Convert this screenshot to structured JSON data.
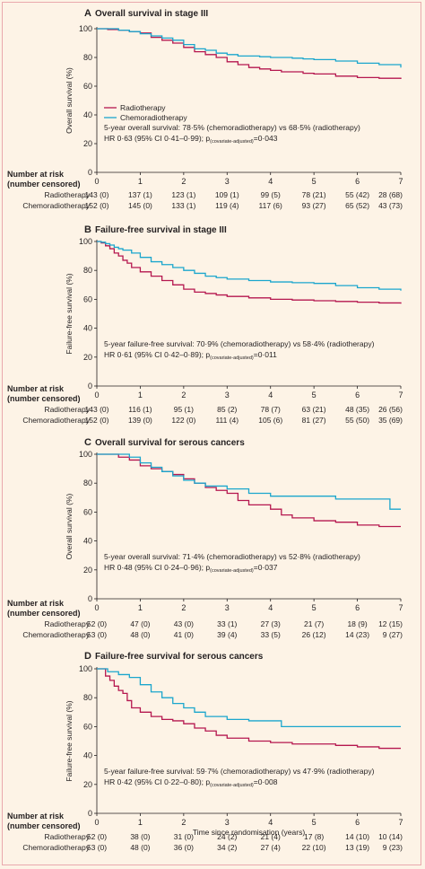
{
  "colors": {
    "radiotherapy": "#b5174f",
    "chemoradiotherapy": "#1ba6cd"
  },
  "legend": {
    "rt_label": "Radiotherapy",
    "crt_label": "Chemoradiotherapy"
  },
  "risk_header": {
    "line1": "Number at risk",
    "line2": "(number censored)"
  },
  "x_axis_label": "Time since randomisation (years)",
  "chart_data": [
    {
      "type": "line",
      "step": true,
      "letter": "A",
      "title": "Overall survival in stage III",
      "ylabel": "Overall survival (%)",
      "xlim": [
        0,
        7
      ],
      "ylim": [
        0,
        100
      ],
      "x_ticks": [
        0,
        1,
        2,
        3,
        4,
        5,
        6,
        7
      ],
      "y_ticks": [
        0,
        20,
        40,
        60,
        80,
        100
      ],
      "legend_shown": true,
      "annotation": [
        "5-year overall survival: 78·5% (chemoradiotherapy) vs 68·5% (radiotherapy)",
        "HR 0·63 (95% CI 0·41–0·99); p",
        "(covariate-adjusted)",
        "=0·043"
      ],
      "series": [
        {
          "name": "Radiotherapy",
          "x": [
            0,
            0.25,
            0.5,
            0.75,
            1,
            1.25,
            1.5,
            1.75,
            2,
            2.25,
            2.5,
            2.75,
            3,
            3.25,
            3.5,
            3.75,
            4,
            4.25,
            4.5,
            4.75,
            5,
            5.5,
            6,
            6.5,
            7
          ],
          "y": [
            100,
            99.5,
            99,
            98,
            97,
            94,
            92,
            90,
            87,
            84,
            82,
            80,
            77,
            75,
            73,
            72,
            71,
            70,
            70,
            69,
            68.5,
            67,
            66,
            65.5,
            65
          ]
        },
        {
          "name": "Chemoradiotherapy",
          "x": [
            0,
            0.25,
            0.5,
            0.75,
            1,
            1.25,
            1.5,
            1.75,
            2,
            2.25,
            2.5,
            2.75,
            3,
            3.25,
            3.5,
            3.75,
            4,
            4.25,
            4.5,
            4.75,
            5,
            5.5,
            6,
            6.5,
            7
          ],
          "y": [
            100,
            100,
            99,
            98,
            96.5,
            95,
            93.5,
            92,
            89,
            86,
            85,
            83,
            82,
            81,
            81,
            80.5,
            80,
            80,
            79.5,
            79,
            78.5,
            77.5,
            76,
            75,
            73
          ]
        }
      ],
      "risk": {
        "rt": [
          "143 (0)",
          "137 (1)",
          "123 (1)",
          "109 (1)",
          "99 (5)",
          "78 (21)",
          "55 (42)",
          "28 (68)"
        ],
        "crt": [
          "152 (0)",
          "145 (0)",
          "133 (1)",
          "119 (4)",
          "117 (6)",
          "93 (27)",
          "65 (52)",
          "43 (73)"
        ]
      }
    },
    {
      "type": "line",
      "step": true,
      "letter": "B",
      "title": "Failure-free survival in stage III",
      "ylabel": "Failure-free survival (%)",
      "xlim": [
        0,
        7
      ],
      "ylim": [
        0,
        100
      ],
      "x_ticks": [
        0,
        1,
        2,
        3,
        4,
        5,
        6,
        7
      ],
      "y_ticks": [
        0,
        20,
        40,
        60,
        80,
        100
      ],
      "legend_shown": false,
      "annotation": [
        "5-year failure-free survival: 70·9% (chemoradiotherapy) vs 58·4% (radiotherapy)",
        "HR 0·61 (95% CI 0·42–0·89); p",
        "(covariate-adjusted)",
        "=0·011"
      ],
      "series": [
        {
          "name": "Radiotherapy",
          "x": [
            0,
            0.1,
            0.2,
            0.3,
            0.4,
            0.5,
            0.6,
            0.7,
            0.8,
            1,
            1.25,
            1.5,
            1.75,
            2,
            2.25,
            2.5,
            2.75,
            3,
            3.5,
            4,
            4.5,
            5,
            5.5,
            6,
            6.5,
            7
          ],
          "y": [
            100,
            99,
            97,
            95,
            92,
            90,
            87,
            85,
            82,
            79,
            76,
            73,
            70,
            67,
            65,
            64,
            63,
            62,
            61,
            60,
            59.5,
            59,
            58.5,
            58,
            57.5,
            57
          ]
        },
        {
          "name": "Chemoradiotherapy",
          "x": [
            0,
            0.1,
            0.2,
            0.3,
            0.4,
            0.5,
            0.6,
            0.8,
            1,
            1.25,
            1.5,
            1.75,
            2,
            2.25,
            2.5,
            2.75,
            3,
            3.5,
            4,
            4.5,
            5,
            5.5,
            6,
            6.5,
            7
          ],
          "y": [
            100,
            99.5,
            98.5,
            97.5,
            96,
            95,
            94,
            92,
            89,
            86,
            84,
            82,
            80,
            78,
            76,
            75,
            74,
            73,
            72,
            71.5,
            71,
            69.5,
            68,
            67,
            66
          ]
        }
      ],
      "risk": {
        "rt": [
          "143 (0)",
          "116 (1)",
          "95 (1)",
          "85 (2)",
          "78 (7)",
          "63 (21)",
          "48 (35)",
          "26 (56)"
        ],
        "crt": [
          "152 (0)",
          "139 (0)",
          "122 (0)",
          "111 (4)",
          "105 (6)",
          "81 (27)",
          "55 (50)",
          "35 (69)"
        ]
      }
    },
    {
      "type": "line",
      "step": true,
      "letter": "C",
      "title": "Overall survival for serous cancers",
      "ylabel": "Overall survival (%)",
      "xlim": [
        0,
        7
      ],
      "ylim": [
        0,
        100
      ],
      "x_ticks": [
        0,
        1,
        2,
        3,
        4,
        5,
        6,
        7
      ],
      "y_ticks": [
        0,
        20,
        40,
        60,
        80,
        100
      ],
      "legend_shown": false,
      "annotation": [
        "5-year overall survival: 71·4% (chemoradiotherapy) vs 52·8% (radiotherapy)",
        "HR 0·48 (95% CI 0·24–0·96); p",
        "(covariate-adjusted)",
        "=0·037"
      ],
      "series": [
        {
          "name": "Radiotherapy",
          "x": [
            0,
            0.5,
            0.75,
            1,
            1.25,
            1.5,
            1.75,
            2,
            2.25,
            2.5,
            2.75,
            3,
            3.25,
            3.5,
            4,
            4.25,
            4.5,
            5,
            5.5,
            6,
            6.5,
            7
          ],
          "y": [
            100,
            98,
            96,
            92,
            90,
            88,
            86,
            83,
            80,
            77,
            75,
            73,
            68,
            65,
            62,
            58,
            56,
            54,
            53,
            51,
            50,
            50
          ]
        },
        {
          "name": "Chemoradiotherapy",
          "x": [
            0,
            0.5,
            0.75,
            1,
            1.25,
            1.5,
            1.75,
            2,
            2.25,
            2.5,
            3,
            3.5,
            4,
            4.5,
            5,
            5.5,
            6,
            6.5,
            6.75,
            7
          ],
          "y": [
            100,
            100,
            98,
            94,
            91,
            88,
            85,
            82,
            80,
            78,
            76,
            73,
            71,
            71,
            71,
            69,
            69,
            69,
            62,
            62
          ]
        }
      ],
      "risk": {
        "rt": [
          "52 (0)",
          "47 (0)",
          "43 (0)",
          "33 (1)",
          "27 (3)",
          "21 (7)",
          "18 (9)",
          "12 (15)"
        ],
        "crt": [
          "53 (0)",
          "48 (0)",
          "41 (0)",
          "39 (4)",
          "33 (5)",
          "26 (12)",
          "14 (23)",
          "9 (27)"
        ]
      }
    },
    {
      "type": "line",
      "step": true,
      "letter": "D",
      "title": "Failure-free survival for serous cancers",
      "ylabel": "Failure-free survival (%)",
      "xlim": [
        0,
        7
      ],
      "ylim": [
        0,
        100
      ],
      "x_ticks": [
        0,
        1,
        2,
        3,
        4,
        5,
        6,
        7
      ],
      "y_ticks": [
        0,
        20,
        40,
        60,
        80,
        100
      ],
      "legend_shown": false,
      "annotation": [
        "5-year failure-free survival: 59·7% (chemoradiotherapy) vs 47·9% (radiotherapy)",
        "HR 0·42 (95% CI 0·22–0·80); p",
        "(covariate-adjusted)",
        "=0·008"
      ],
      "series": [
        {
          "name": "Radiotherapy",
          "x": [
            0,
            0.2,
            0.3,
            0.4,
            0.5,
            0.6,
            0.7,
            0.8,
            1,
            1.25,
            1.5,
            1.75,
            2,
            2.25,
            2.5,
            2.75,
            3,
            3.5,
            4,
            4.5,
            5,
            5.5,
            6,
            6.5,
            7
          ],
          "y": [
            100,
            95,
            92,
            88,
            85,
            83,
            78,
            73,
            70,
            67,
            65,
            64,
            62,
            59,
            57,
            54,
            52,
            50,
            49,
            48,
            48,
            47,
            46,
            45,
            45
          ]
        },
        {
          "name": "Chemoradiotherapy",
          "x": [
            0,
            0.25,
            0.5,
            0.75,
            1,
            1.25,
            1.5,
            1.75,
            2,
            2.25,
            2.5,
            3,
            3.5,
            4,
            4.25,
            4.5,
            5,
            5.5,
            6,
            6.5,
            7
          ],
          "y": [
            100,
            98,
            96,
            94,
            89,
            84,
            80,
            76,
            73,
            70,
            67,
            65,
            64,
            64,
            60,
            60,
            60,
            60,
            60,
            60,
            60
          ]
        }
      ],
      "risk": {
        "rt": [
          "52 (0)",
          "38 (0)",
          "31 (0)",
          "24 (2)",
          "21 (4)",
          "17 (8)",
          "14 (10)",
          "10 (14)"
        ],
        "crt": [
          "53 (0)",
          "48 (0)",
          "36 (0)",
          "34 (2)",
          "27 (4)",
          "22 (10)",
          "13 (19)",
          "9 (23)"
        ]
      }
    }
  ]
}
